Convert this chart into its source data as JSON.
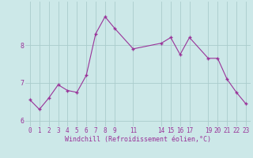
{
  "x": [
    0,
    1,
    2,
    3,
    4,
    5,
    6,
    7,
    8,
    9,
    11,
    14,
    15,
    16,
    17,
    19,
    20,
    21,
    22,
    23
  ],
  "y": [
    6.55,
    6.3,
    6.6,
    6.95,
    6.8,
    6.75,
    7.2,
    8.3,
    8.75,
    8.45,
    7.9,
    8.05,
    8.2,
    7.75,
    8.2,
    7.65,
    7.65,
    7.1,
    6.75,
    6.45
  ],
  "line_color": "#993399",
  "marker": "+",
  "marker_size": 3,
  "marker_lw": 1.0,
  "line_width": 0.8,
  "bg_color": "#cce8e8",
  "grid_color": "#aacccc",
  "xlabel": "Windchill (Refroidissement éolien,°C)",
  "xlabel_color": "#993399",
  "tick_color": "#993399",
  "xticks": [
    0,
    1,
    2,
    3,
    4,
    5,
    6,
    7,
    8,
    9,
    11,
    14,
    15,
    16,
    17,
    19,
    20,
    21,
    22,
    23
  ],
  "yticks": [
    6,
    7,
    8
  ],
  "ylim": [
    5.85,
    9.15
  ],
  "xlim": [
    -0.5,
    23.5
  ],
  "tick_fontsize": 5.5,
  "xlabel_fontsize": 6.0
}
